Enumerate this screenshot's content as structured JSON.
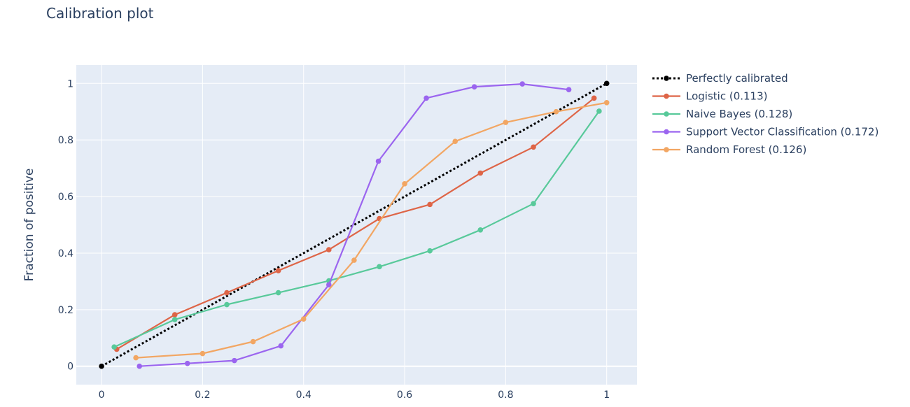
{
  "chart_data": {
    "type": "line",
    "title": "Calibration plot",
    "xlabel": "",
    "ylabel": "Fraction of positive",
    "xlim": [
      -0.05,
      1.06
    ],
    "ylim": [
      -0.065,
      1.065
    ],
    "x_ticks": [
      0,
      0.2,
      0.4,
      0.6,
      0.8,
      1
    ],
    "x_tick_labels": [
      "0",
      "0.2",
      "0.4",
      "0.6",
      "0.8",
      "1"
    ],
    "y_ticks": [
      0,
      0.2,
      0.4,
      0.6,
      0.8,
      1
    ],
    "y_tick_labels": [
      "0",
      "0.2",
      "0.4",
      "0.6",
      "0.8",
      "1"
    ],
    "grid": true,
    "legend_position": "right",
    "plot_background": "#e5ecf6",
    "series": [
      {
        "name": "Perfectly calibrated",
        "color": "#000000",
        "dash": "dot",
        "x": [
          0,
          1
        ],
        "y": [
          0,
          1
        ]
      },
      {
        "name": "Logistic (0.113)",
        "color": "#de6547",
        "dash": "solid",
        "x": [
          0.03,
          0.145,
          0.248,
          0.35,
          0.45,
          0.55,
          0.65,
          0.75,
          0.855,
          0.975
        ],
        "y": [
          0.06,
          0.182,
          0.26,
          0.338,
          0.412,
          0.522,
          0.572,
          0.683,
          0.775,
          0.948
        ]
      },
      {
        "name": "Naive Bayes (0.128)",
        "color": "#58c99a",
        "dash": "solid",
        "x": [
          0.025,
          0.145,
          0.248,
          0.35,
          0.45,
          0.55,
          0.65,
          0.75,
          0.855,
          0.985
        ],
        "y": [
          0.068,
          0.165,
          0.218,
          0.26,
          0.302,
          0.352,
          0.408,
          0.482,
          0.575,
          0.902
        ]
      },
      {
        "name": "Support Vector Classification (0.172)",
        "color": "#9b65ef",
        "dash": "solid",
        "x": [
          0.075,
          0.17,
          0.263,
          0.355,
          0.45,
          0.548,
          0.643,
          0.738,
          0.833,
          0.925
        ],
        "y": [
          0.0,
          0.01,
          0.02,
          0.072,
          0.288,
          0.725,
          0.948,
          0.988,
          0.998,
          0.978
        ]
      },
      {
        "name": "Random Forest (0.126)",
        "color": "#f2a663",
        "dash": "solid",
        "x": [
          0.068,
          0.2,
          0.3,
          0.4,
          0.5,
          0.6,
          0.7,
          0.8,
          0.9,
          1.0
        ],
        "y": [
          0.03,
          0.045,
          0.087,
          0.167,
          0.375,
          0.645,
          0.795,
          0.862,
          0.9,
          0.932
        ]
      }
    ]
  }
}
